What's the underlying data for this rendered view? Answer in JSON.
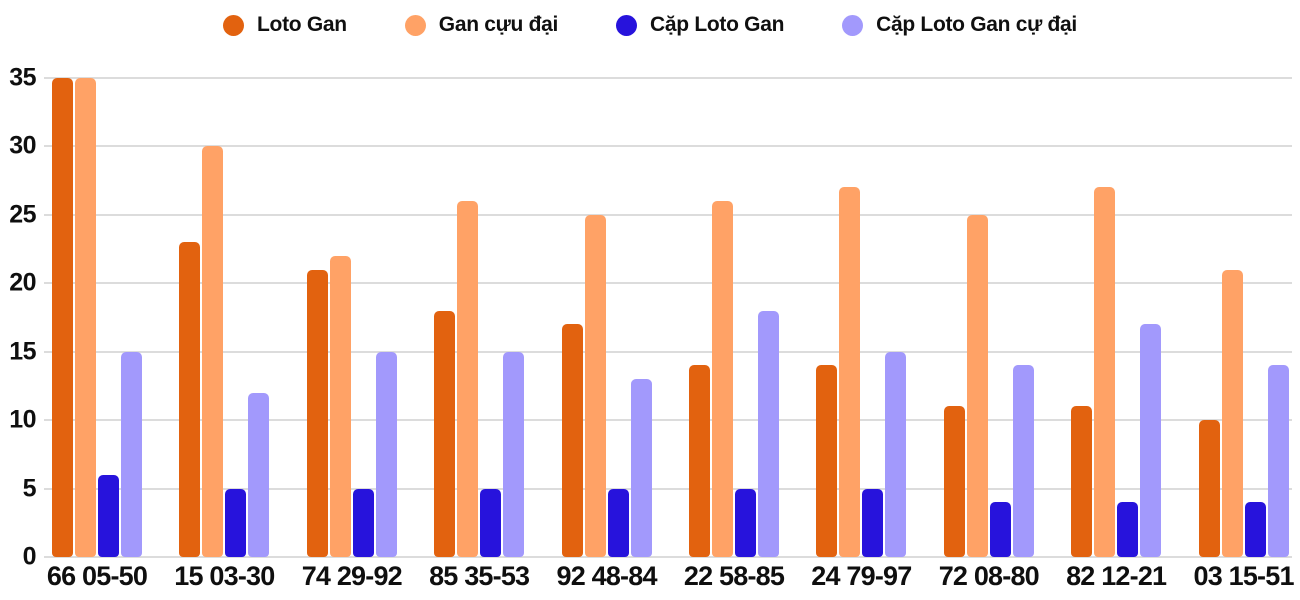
{
  "chart_data": {
    "type": "bar",
    "title": "",
    "xlabel": "",
    "ylabel": "",
    "categories": [
      "66 05-50",
      "15 03-30",
      "74 29-92",
      "85 35-53",
      "92 48-84",
      "22 58-85",
      "24 79-97",
      "72 08-80",
      "82 12-21",
      "03 15-51"
    ],
    "series": [
      {
        "name": "Loto Gan",
        "color": "#e2620f",
        "values": [
          35,
          23,
          21,
          18,
          17,
          14,
          14,
          11,
          11,
          10
        ]
      },
      {
        "name": "Gan cựu đại",
        "color": "#ffa266",
        "values": [
          35,
          30,
          22,
          26,
          25,
          26,
          27,
          25,
          27,
          21
        ]
      },
      {
        "name": "Cặp Loto Gan",
        "color": "#2713dc",
        "values": [
          6,
          5,
          5,
          5,
          5,
          5,
          5,
          4,
          4,
          4
        ]
      },
      {
        "name": "Cặp Loto Gan cự đại",
        "color": "#a299fc",
        "values": [
          15,
          12,
          15,
          15,
          13,
          18,
          15,
          14,
          17,
          14
        ]
      }
    ],
    "y_ticks": [
      0,
      5,
      10,
      15,
      20,
      25,
      30,
      35
    ],
    "ylim": [
      0,
      35
    ],
    "grid": true,
    "legend_position": "top"
  },
  "colors": {
    "background": "#ffffff",
    "gridline": "#dcdcdc",
    "axis_text": "#0f0f0f",
    "legend_text": "#101010"
  }
}
